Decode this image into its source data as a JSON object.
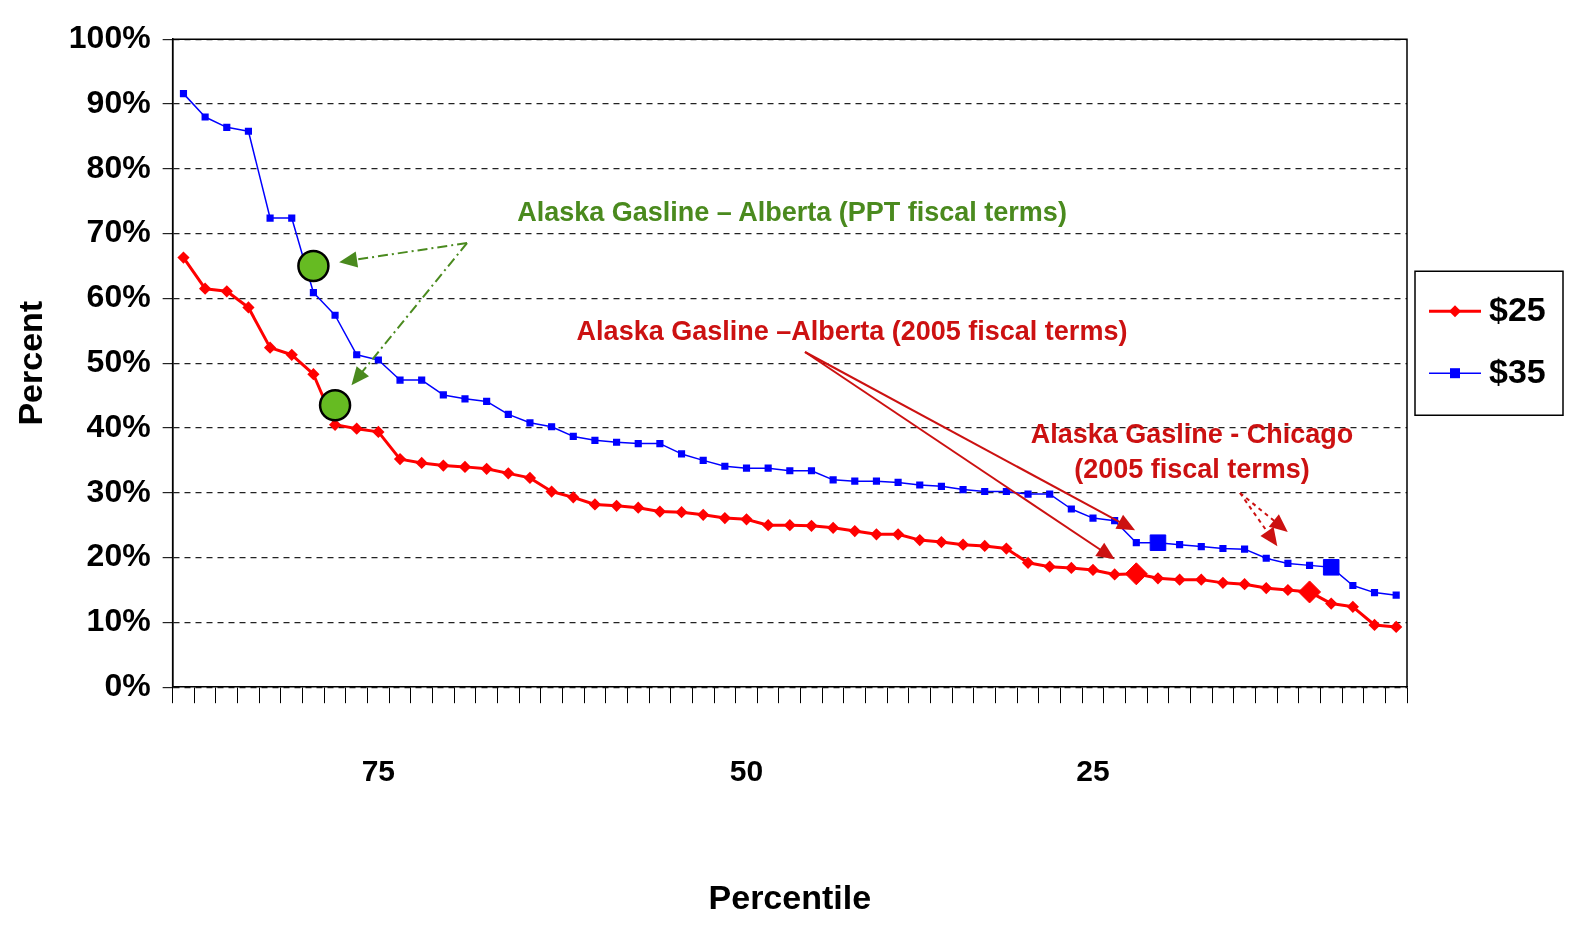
{
  "chart_data": {
    "type": "line",
    "xlabel": "Percentile",
    "ylabel": "Percent",
    "categories": [
      null,
      null,
      null,
      null,
      null,
      null,
      null,
      null,
      null,
      "75",
      null,
      null,
      null,
      null,
      null,
      null,
      null,
      null,
      null,
      null,
      null,
      null,
      null,
      null,
      null,
      null,
      "50",
      null,
      null,
      null,
      null,
      null,
      null,
      null,
      null,
      null,
      null,
      null,
      null,
      null,
      null,
      null,
      "25",
      null,
      null,
      null,
      null,
      null,
      null,
      null,
      null,
      null,
      null,
      null,
      null,
      null,
      null
    ],
    "ylim": [
      0,
      100
    ],
    "yticks": [
      {
        "value": 0,
        "label": "0%"
      },
      {
        "value": 10,
        "label": "10%"
      },
      {
        "value": 20,
        "label": "20%"
      },
      {
        "value": 30,
        "label": "30%"
      },
      {
        "value": 40,
        "label": "40%"
      },
      {
        "value": 50,
        "label": "50%"
      },
      {
        "value": 60,
        "label": "60%"
      },
      {
        "value": 70,
        "label": "70%"
      },
      {
        "value": 80,
        "label": "80%"
      },
      {
        "value": 90,
        "label": "90%"
      },
      {
        "value": 100,
        "label": "100%"
      }
    ],
    "grid": "y",
    "legend": "right",
    "line_style": "solid",
    "series": [
      {
        "name": "$25",
        "color": "#ff0000",
        "marker": "diamond",
        "values": [
          66.3,
          61.5,
          61.1,
          58.6,
          52.4,
          51.3,
          48.3,
          40.5,
          39.9,
          39.4,
          35.2,
          34.6,
          34.2,
          34.0,
          33.7,
          33.0,
          32.3,
          30.2,
          29.3,
          28.2,
          28.0,
          27.7,
          27.1,
          27.0,
          26.6,
          26.1,
          25.9,
          25.0,
          25.0,
          24.9,
          24.6,
          24.1,
          23.6,
          23.6,
          22.7,
          22.4,
          22.0,
          21.8,
          21.4,
          19.2,
          18.6,
          18.4,
          18.1,
          17.4,
          17.5,
          16.8,
          16.6,
          16.6,
          16.1,
          15.9,
          15.3,
          15.0,
          14.7,
          12.9,
          12.4,
          9.6,
          9.3
        ]
      },
      {
        "name": "$35",
        "color": "#0000ff",
        "marker": "square",
        "values": [
          91.6,
          88.0,
          86.4,
          85.8,
          72.4,
          72.4,
          60.9,
          57.4,
          51.3,
          50.5,
          47.4,
          47.4,
          45.1,
          44.5,
          44.1,
          42.1,
          40.8,
          40.2,
          38.7,
          38.1,
          37.8,
          37.6,
          37.6,
          36.0,
          35.0,
          34.1,
          33.8,
          33.8,
          33.4,
          33.4,
          32.0,
          31.8,
          31.8,
          31.6,
          31.2,
          31.0,
          30.5,
          30.2,
          30.2,
          29.8,
          29.8,
          27.5,
          26.1,
          25.7,
          22.3,
          22.3,
          22.0,
          21.7,
          21.4,
          21.3,
          19.9,
          19.1,
          18.8,
          18.5,
          15.7,
          14.6,
          14.2
        ]
      },
      {
        "type": "scatter",
        "color": "#66bb22",
        "marker": "circle",
        "values": [
          null,
          null,
          null,
          null,
          null,
          null,
          65,
          43.5,
          null,
          null,
          null,
          null,
          null,
          null,
          null,
          null,
          null,
          null,
          null,
          null,
          null,
          null,
          null,
          null,
          null,
          null,
          null,
          null,
          null,
          null,
          null,
          null,
          null,
          null,
          null,
          null,
          null,
          null,
          null,
          null,
          null,
          null,
          null,
          null,
          null,
          null,
          null,
          null,
          null,
          null,
          null,
          null,
          null,
          null,
          null,
          null,
          null
        ]
      },
      {
        "type": "scatter",
        "color": "#ff0000",
        "marker": "diamond",
        "values": [
          null,
          null,
          null,
          null,
          null,
          null,
          null,
          null,
          null,
          null,
          null,
          null,
          null,
          null,
          null,
          null,
          null,
          null,
          null,
          null,
          null,
          null,
          null,
          null,
          null,
          null,
          null,
          null,
          null,
          null,
          null,
          null,
          null,
          null,
          null,
          null,
          null,
          null,
          null,
          null,
          null,
          null,
          null,
          null,
          17.5,
          null,
          null,
          null,
          null,
          null,
          null,
          null,
          14.7,
          null,
          null,
          null,
          null
        ]
      },
      {
        "type": "scatter",
        "color": "#0000ff",
        "marker": "square",
        "values": [
          null,
          null,
          null,
          null,
          null,
          null,
          null,
          null,
          null,
          null,
          null,
          null,
          null,
          null,
          null,
          null,
          null,
          null,
          null,
          null,
          null,
          null,
          null,
          null,
          null,
          null,
          null,
          null,
          null,
          null,
          null,
          null,
          null,
          null,
          null,
          null,
          null,
          null,
          null,
          null,
          null,
          null,
          null,
          null,
          null,
          22.3,
          null,
          null,
          null,
          null,
          null,
          null,
          null,
          18.5,
          null,
          null,
          null
        ]
      }
    ],
    "annotations": [
      "Alaska Gasline – Alberta (PPT fiscal terms)",
      "Alaska Gasline –Alberta (2005 fiscal terms)",
      "Alaska Gasline - Chicago\n(2005 fiscal terms)"
    ]
  }
}
